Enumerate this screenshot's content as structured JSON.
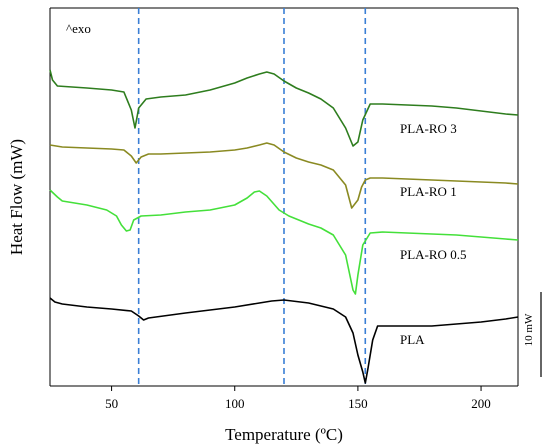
{
  "chart_data": {
    "type": "line",
    "title": "",
    "xlabel": "Temperature (ºC)",
    "ylabel": "Heat Flow (mW)",
    "xlim": [
      25,
      215
    ],
    "xticks": [
      50,
      100,
      150,
      200
    ],
    "yticks_shown": false,
    "grid": false,
    "annotation_exo": "^exo",
    "scale_bar": {
      "label": "10 mW",
      "value": 10
    },
    "reference_lines_x": [
      61,
      120,
      153
    ],
    "reference_line_color": "#3a7fd5",
    "series": [
      {
        "name": "PLA-RO 3",
        "color": "#2e7d1e",
        "points": [
          [
            25,
            70
          ],
          [
            26,
            80
          ],
          [
            28,
            86
          ],
          [
            40,
            88
          ],
          [
            50,
            90
          ],
          [
            55,
            92
          ],
          [
            58,
            110
          ],
          [
            59.5,
            128
          ],
          [
            61,
            108
          ],
          [
            64,
            99
          ],
          [
            70,
            97
          ],
          [
            80,
            95
          ],
          [
            90,
            90
          ],
          [
            100,
            83
          ],
          [
            105,
            78
          ],
          [
            110,
            74
          ],
          [
            113,
            72
          ],
          [
            116,
            74
          ],
          [
            120,
            81
          ],
          [
            125,
            88
          ],
          [
            130,
            93
          ],
          [
            135,
            99
          ],
          [
            140,
            108
          ],
          [
            145,
            128
          ],
          [
            148,
            146
          ],
          [
            150,
            142
          ],
          [
            152,
            120
          ],
          [
            155,
            104
          ],
          [
            160,
            104
          ],
          [
            170,
            105
          ],
          [
            180,
            106
          ],
          [
            190,
            108
          ],
          [
            200,
            111
          ],
          [
            210,
            114
          ],
          [
            215,
            115
          ]
        ]
      },
      {
        "name": "PLA-RO 1",
        "color": "#8a8a22",
        "points": [
          [
            25,
            145
          ],
          [
            30,
            147
          ],
          [
            40,
            148
          ],
          [
            50,
            149
          ],
          [
            55,
            150
          ],
          [
            58,
            156
          ],
          [
            60,
            163
          ],
          [
            62,
            157
          ],
          [
            65,
            154
          ],
          [
            70,
            154
          ],
          [
            80,
            153
          ],
          [
            90,
            152
          ],
          [
            100,
            150
          ],
          [
            105,
            148
          ],
          [
            110,
            145
          ],
          [
            113,
            143
          ],
          [
            116,
            145
          ],
          [
            120,
            152
          ],
          [
            125,
            158
          ],
          [
            130,
            162
          ],
          [
            135,
            165
          ],
          [
            140,
            170
          ],
          [
            145,
            185
          ],
          [
            147.5,
            208
          ],
          [
            150,
            200
          ],
          [
            151.5,
            187
          ],
          [
            153,
            180
          ],
          [
            155,
            178
          ],
          [
            160,
            178
          ],
          [
            170,
            179
          ],
          [
            180,
            180
          ],
          [
            190,
            181
          ],
          [
            200,
            182
          ],
          [
            210,
            183
          ],
          [
            215,
            184
          ]
        ]
      },
      {
        "name": "PLA-RO 0.5",
        "color": "#44e03a",
        "points": [
          [
            25,
            190
          ],
          [
            28,
            197
          ],
          [
            30,
            201
          ],
          [
            40,
            205
          ],
          [
            48,
            210
          ],
          [
            52,
            216
          ],
          [
            54,
            225
          ],
          [
            56,
            231
          ],
          [
            57.5,
            230
          ],
          [
            59,
            220
          ],
          [
            62,
            216
          ],
          [
            70,
            215
          ],
          [
            80,
            212
          ],
          [
            90,
            210
          ],
          [
            100,
            205
          ],
          [
            105,
            198
          ],
          [
            108,
            192
          ],
          [
            110,
            191
          ],
          [
            113,
            196
          ],
          [
            118,
            210
          ],
          [
            122,
            216
          ],
          [
            126,
            220
          ],
          [
            130,
            224
          ],
          [
            135,
            228
          ],
          [
            140,
            235
          ],
          [
            145,
            255
          ],
          [
            148,
            290
          ],
          [
            149,
            294
          ],
          [
            150,
            275
          ],
          [
            152,
            245
          ],
          [
            155,
            233
          ],
          [
            160,
            232
          ],
          [
            170,
            233
          ],
          [
            180,
            234
          ],
          [
            190,
            235
          ],
          [
            200,
            237
          ],
          [
            210,
            239
          ],
          [
            215,
            240
          ]
        ]
      },
      {
        "name": "PLA",
        "color": "#000000",
        "points": [
          [
            25,
            298
          ],
          [
            27,
            302
          ],
          [
            30,
            304
          ],
          [
            40,
            307
          ],
          [
            50,
            309
          ],
          [
            58,
            311
          ],
          [
            61,
            316
          ],
          [
            63,
            320
          ],
          [
            65,
            318
          ],
          [
            68,
            317
          ],
          [
            80,
            313
          ],
          [
            90,
            310
          ],
          [
            100,
            307
          ],
          [
            110,
            303
          ],
          [
            115,
            301
          ],
          [
            120,
            300
          ],
          [
            130,
            303
          ],
          [
            140,
            309
          ],
          [
            145,
            317
          ],
          [
            148,
            333
          ],
          [
            150,
            355
          ],
          [
            152,
            372
          ],
          [
            153,
            383
          ],
          [
            154,
            370
          ],
          [
            156,
            340
          ],
          [
            158,
            326
          ],
          [
            170,
            326
          ],
          [
            180,
            326
          ],
          [
            190,
            324
          ],
          [
            200,
            322
          ],
          [
            210,
            319
          ],
          [
            215,
            317
          ]
        ]
      }
    ],
    "series_labels": [
      "PLA-RO 3",
      "PLA-RO 1",
      "PLA-RO 0.5",
      "PLA"
    ],
    "legend_placement": "right, inline beside each curve"
  }
}
